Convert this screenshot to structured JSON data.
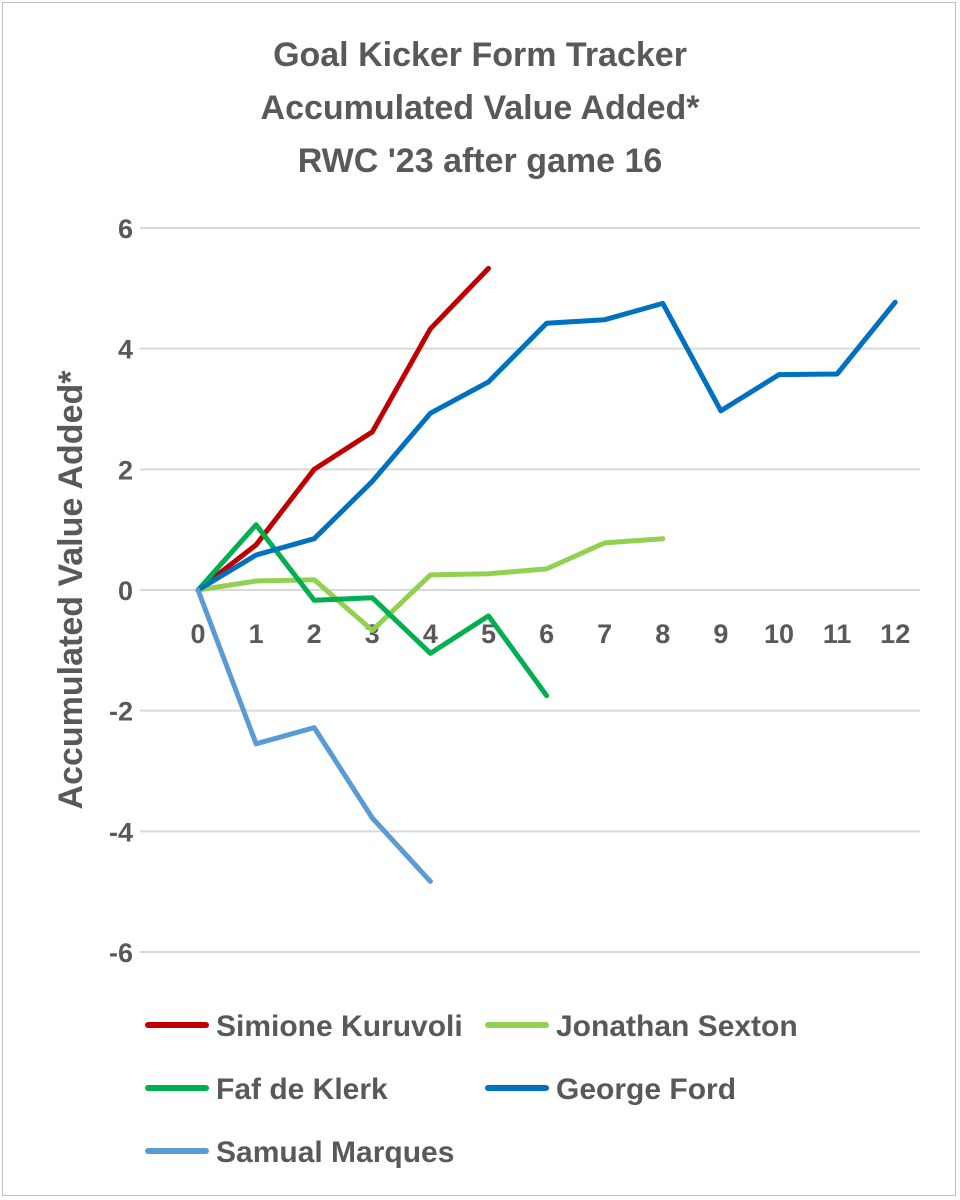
{
  "chart_data": {
    "type": "line",
    "title": [
      "Goal Kicker Form Tracker",
      "Accumulated Value Added*",
      "RWC '23 after game 16"
    ],
    "xlabel": "",
    "ylabel": "Accumulated Value Added*",
    "x_ticks": [
      "0",
      "1",
      "2",
      "3",
      "4",
      "5",
      "6",
      "7",
      "8",
      "9",
      "10",
      "11",
      "12"
    ],
    "y_ticks": [
      "6",
      "4",
      "2",
      "0",
      "-2",
      "-4",
      "-6"
    ],
    "ylim": [
      -6,
      6
    ],
    "xlim": [
      0,
      12
    ],
    "grid": true,
    "legend_position": "bottom",
    "series": [
      {
        "name": "Simione Kuruvoli",
        "color": "#c00000",
        "x": [
          0,
          1,
          2,
          3,
          4,
          5
        ],
        "values": [
          0,
          0.75,
          2.0,
          2.62,
          4.33,
          5.33
        ]
      },
      {
        "name": "Jonathan Sexton",
        "color": "#92d050",
        "x": [
          0,
          1,
          2,
          3,
          4,
          5,
          6,
          7,
          8
        ],
        "values": [
          0,
          0.15,
          0.17,
          -0.67,
          0.25,
          0.27,
          0.35,
          0.78,
          0.85
        ]
      },
      {
        "name": "Faf de Klerk",
        "color": "#00b050",
        "x": [
          0,
          1,
          2,
          3,
          4,
          5,
          6
        ],
        "values": [
          0,
          1.08,
          -0.17,
          -0.13,
          -1.05,
          -0.43,
          -1.75
        ]
      },
      {
        "name": "George Ford",
        "color": "#0070c0",
        "x": [
          0,
          1,
          2,
          3,
          4,
          5,
          6,
          7,
          8,
          9,
          10,
          11,
          12
        ],
        "values": [
          0,
          0.58,
          0.85,
          1.8,
          2.93,
          3.45,
          4.42,
          4.48,
          4.75,
          2.97,
          3.57,
          3.58,
          4.77
        ]
      },
      {
        "name": "Samual Marques",
        "color": "#5b9bd5",
        "x": [
          0,
          1,
          2,
          3,
          4
        ],
        "values": [
          0,
          -2.55,
          -2.28,
          -3.78,
          -4.83
        ]
      }
    ]
  }
}
